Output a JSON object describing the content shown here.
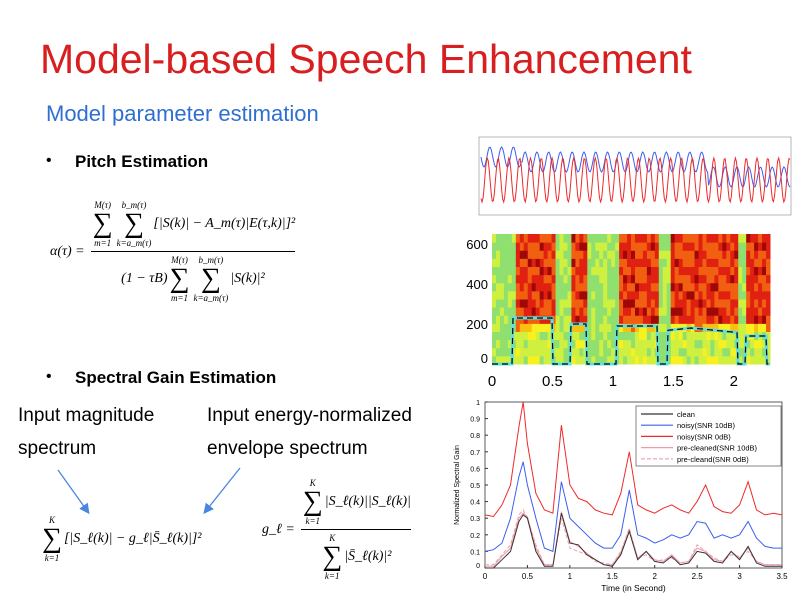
{
  "slide": {
    "title": "Model-based Speech Enhancement",
    "subtitle": "Model parameter estimation",
    "bullets": [
      "Pitch Estimation",
      "Spectral Gain Estimation"
    ],
    "bullet_symbol": "•",
    "annotations": {
      "input_magnitude": [
        "Input magnitude",
        "spectrum"
      ],
      "input_envelope": [
        "Input energy-normalized",
        "envelope spectrum"
      ]
    },
    "colors": {
      "title": "#d81e1e",
      "subtitle": "#2f6fd0",
      "arrow": "#4a86e0"
    }
  },
  "equations": {
    "alpha": {
      "lhs": "α(τ) =",
      "num_sum1": {
        "upper": "M(τ)",
        "lower": "m=1"
      },
      "num_sum2": {
        "upper": "b_m(τ)",
        "lower": "k=a_m(τ)"
      },
      "num_body": "[|S(k)| − A_m(τ)|E(τ,k)|]²",
      "den_prefix": "(1 − τB)",
      "den_sum1": {
        "upper": "M(τ)",
        "lower": "m=1"
      },
      "den_sum2": {
        "upper": "b_m(τ)",
        "lower": "k=a_m(τ)"
      },
      "den_body": "|S(k)|²"
    },
    "cost": {
      "sum": {
        "upper": "K",
        "lower": "k=1"
      },
      "body": "[|S_ℓ(k)| − g_ℓ|S̄_ℓ(k)|]²"
    },
    "gain": {
      "lhs": "g_ℓ =",
      "num_sum": {
        "upper": "K",
        "lower": "k=1"
      },
      "num_body": "|S_ℓ(k)||S_ℓ(k)|",
      "den_sum": {
        "upper": "K",
        "lower": "k=1"
      },
      "den_body": "|S̄_ℓ(k)|²"
    }
  },
  "chart_data": [
    {
      "type": "line",
      "title": "",
      "series_colors": [
        "#3d5ef0",
        "#ee2a2a"
      ],
      "note": "pitch waveform comparison; tick labels illegible"
    },
    {
      "type": "heatmap",
      "yticks": [
        "0",
        "200",
        "400",
        "600"
      ],
      "xticks": [
        "0",
        "0.5",
        "1",
        "1.5",
        "2"
      ],
      "xlim": [
        0,
        2.3
      ],
      "ylim": [
        0,
        650
      ],
      "overlay_colors": [
        "#000000",
        "#5fe0e0"
      ]
    },
    {
      "type": "line",
      "xlabel": "Time (in Second)",
      "ylabel": "Normalized Spectral Gain",
      "xlim": [
        0,
        3.5
      ],
      "ylim": [
        0,
        1
      ],
      "xticks": [
        "0",
        "0.5",
        "1",
        "1.5",
        "2",
        "2.5",
        "3",
        "3.5"
      ],
      "yticks": [
        "0",
        "0.1",
        "0.2",
        "0.3",
        "0.4",
        "0.5",
        "0.6",
        "0.7",
        "0.8",
        "0.9",
        "1"
      ],
      "legend_position": "top-right",
      "x": [
        0,
        0.1,
        0.2,
        0.3,
        0.4,
        0.45,
        0.5,
        0.6,
        0.7,
        0.8,
        0.9,
        1.0,
        1.1,
        1.2,
        1.3,
        1.4,
        1.5,
        1.6,
        1.7,
        1.8,
        1.9,
        2.0,
        2.1,
        2.2,
        2.3,
        2.4,
        2.5,
        2.6,
        2.7,
        2.8,
        2.9,
        3.0,
        3.1,
        3.2,
        3.3,
        3.4,
        3.5
      ],
      "series": [
        {
          "name": "clean",
          "color": "#333333",
          "dash": false,
          "values": [
            0,
            0,
            0.05,
            0.1,
            0.28,
            0.32,
            0.3,
            0.1,
            0.01,
            0.01,
            0.33,
            0.15,
            0.14,
            0.08,
            0.05,
            0.02,
            0.01,
            0.08,
            0.22,
            0.05,
            0.1,
            0.04,
            0.03,
            0.07,
            0.02,
            0.03,
            0.1,
            0.09,
            0.04,
            0.03,
            0.1,
            0.05,
            0.13,
            0.03,
            0.01,
            0.01,
            0.01
          ]
        },
        {
          "name": "noisy(SNR 10dB)",
          "color": "#3d5ef0",
          "dash": false,
          "values": [
            0.1,
            0.11,
            0.15,
            0.3,
            0.55,
            0.64,
            0.5,
            0.3,
            0.12,
            0.1,
            0.52,
            0.3,
            0.25,
            0.2,
            0.15,
            0.12,
            0.12,
            0.2,
            0.47,
            0.2,
            0.18,
            0.15,
            0.17,
            0.2,
            0.18,
            0.2,
            0.28,
            0.27,
            0.18,
            0.2,
            0.18,
            0.2,
            0.28,
            0.18,
            0.13,
            0.12,
            0.12
          ]
        },
        {
          "name": "noisy(SNR 0dB)",
          "color": "#ee2a2a",
          "dash": false,
          "values": [
            0.32,
            0.31,
            0.38,
            0.5,
            0.85,
            1.0,
            0.75,
            0.45,
            0.35,
            0.33,
            0.86,
            0.5,
            0.42,
            0.4,
            0.35,
            0.33,
            0.32,
            0.45,
            0.7,
            0.38,
            0.35,
            0.33,
            0.36,
            0.38,
            0.35,
            0.33,
            0.4,
            0.5,
            0.37,
            0.34,
            0.33,
            0.38,
            0.52,
            0.35,
            0.32,
            0.33,
            0.32
          ]
        },
        {
          "name": "pre-cleaned(SNR 10dB)",
          "color": "#f29aa8",
          "dash": false,
          "values": [
            0.01,
            0.01,
            0.07,
            0.12,
            0.3,
            0.33,
            0.31,
            0.12,
            0.02,
            0.02,
            0.34,
            0.16,
            0.13,
            0.09,
            0.05,
            0.02,
            0.02,
            0.09,
            0.23,
            0.06,
            0.1,
            0.05,
            0.04,
            0.08,
            0.03,
            0.04,
            0.12,
            0.1,
            0.05,
            0.04,
            0.1,
            0.06,
            0.12,
            0.04,
            0.02,
            0.02,
            0.02
          ]
        },
        {
          "name": "pre-cleand(SNR 0dB)",
          "color": "#f0a0b0",
          "dash": true,
          "values": [
            0.02,
            0.02,
            0.08,
            0.14,
            0.32,
            0.35,
            0.3,
            0.14,
            0.02,
            0.02,
            0.3,
            0.12,
            0.1,
            0.08,
            0.04,
            0.03,
            0.02,
            0.1,
            0.24,
            0.06,
            0.08,
            0.04,
            0.05,
            0.06,
            0.03,
            0.04,
            0.14,
            0.1,
            0.06,
            0.04,
            0.08,
            0.07,
            0.1,
            0.04,
            0.02,
            0.02,
            0.02
          ]
        }
      ]
    }
  ]
}
